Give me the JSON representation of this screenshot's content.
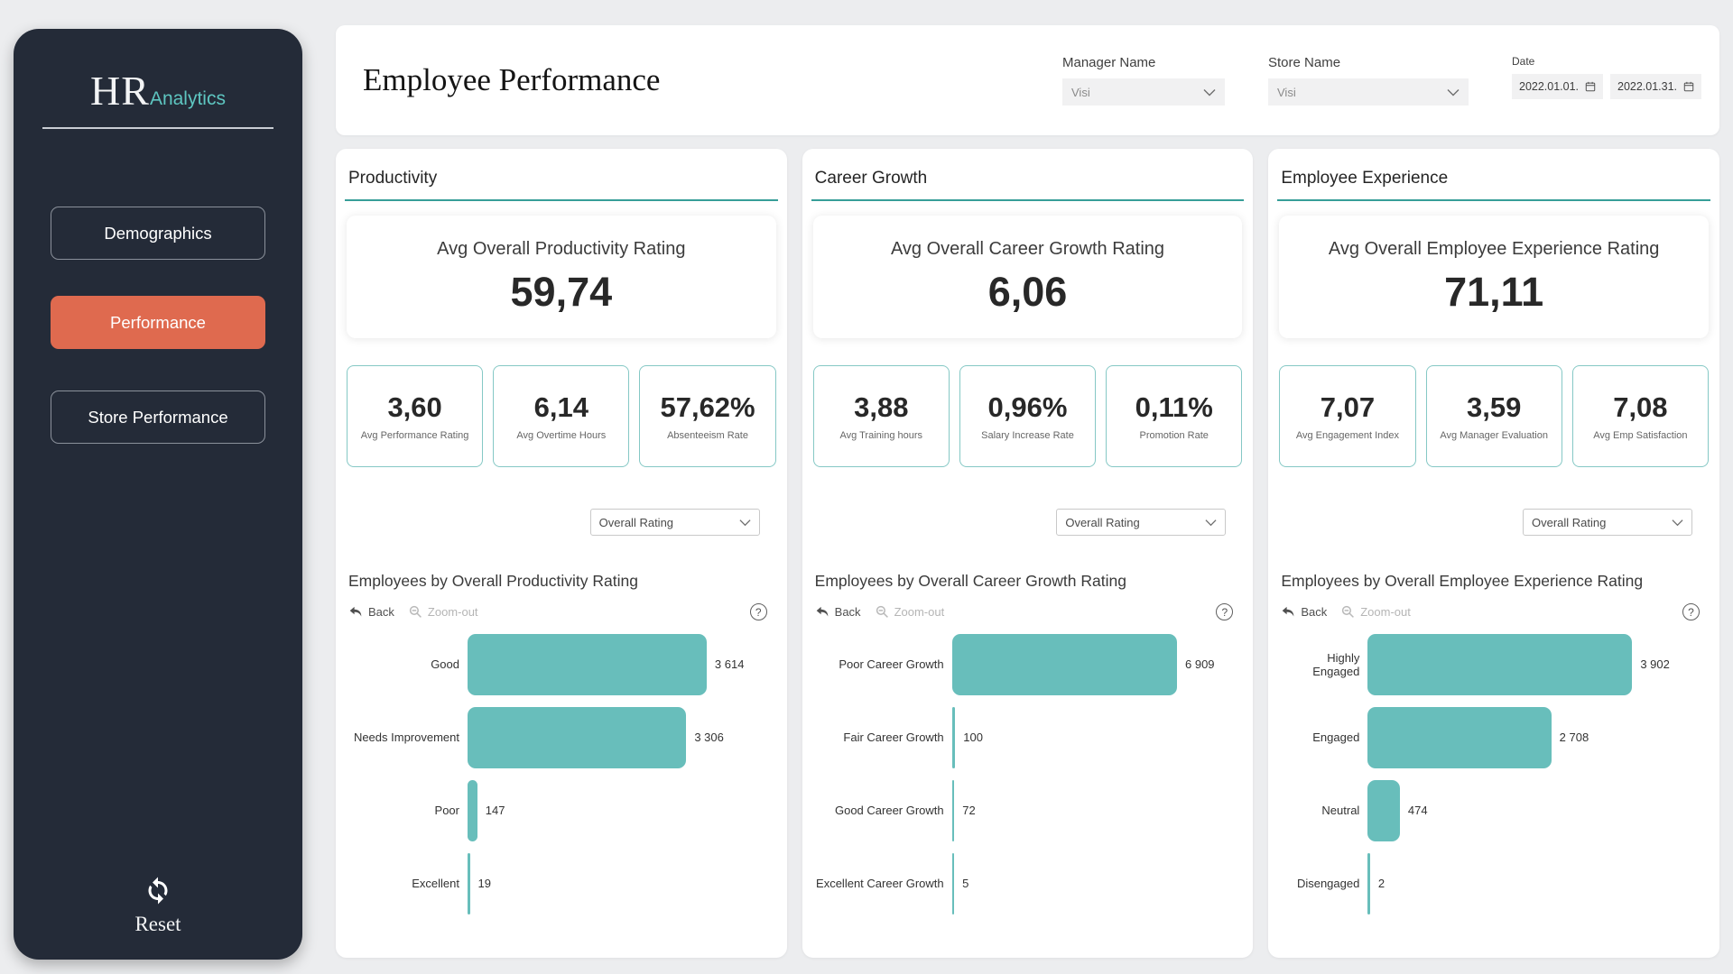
{
  "colors": {
    "accent_teal": "#68BEBB",
    "accent_teal_light": "#5EC6C1",
    "accent_orange": "#DF6A4F",
    "underline_teal": "#379E98",
    "sidebar_bg": "#242B38"
  },
  "sidebar": {
    "logo": {
      "primary": "HR",
      "secondary": "Analytics"
    },
    "nav": [
      {
        "label": "Demographics",
        "active": false
      },
      {
        "label": "Performance",
        "active": true
      },
      {
        "label": "Store Performance",
        "active": false
      }
    ],
    "reset_label": "Reset"
  },
  "header": {
    "title": "Employee Performance",
    "filters": {
      "manager": {
        "label": "Manager Name",
        "value": "Visi"
      },
      "store": {
        "label": "Store Name",
        "value": "Visi"
      },
      "date": {
        "label": "Date",
        "start": "2022.01.01.",
        "end": "2022.01.31."
      }
    }
  },
  "misc": {
    "help_glyph": "?"
  },
  "cards": [
    {
      "title": "Productivity",
      "kpi_label": "Avg Overall Productivity Rating",
      "kpi_value": "59,74",
      "metrics": [
        {
          "value": "3,60",
          "label": "Avg Performance Rating"
        },
        {
          "value": "6,14",
          "label": "Avg Overtime Hours"
        },
        {
          "value": "57,62%",
          "label": "Absenteeism Rate"
        }
      ],
      "breakdown_selector": "Overall Rating"
    },
    {
      "title": "Career Growth",
      "kpi_label": "Avg Overall Career Growth Rating",
      "kpi_value": "6,06",
      "metrics": [
        {
          "value": "3,88",
          "label": "Avg Training hours"
        },
        {
          "value": "0,96%",
          "label": "Salary Increase Rate"
        },
        {
          "value": "0,11%",
          "label": "Promotion Rate"
        }
      ],
      "breakdown_selector": "Overall Rating"
    },
    {
      "title": "Employee Experience",
      "kpi_label": "Avg Overall Employee Experience Rating",
      "kpi_value": "71,11",
      "metrics": [
        {
          "value": "7,07",
          "label": "Avg Engagement Index"
        },
        {
          "value": "3,59",
          "label": "Avg Manager Evaluation"
        },
        {
          "value": "7,08",
          "label": "Avg Emp Satisfaction"
        }
      ],
      "breakdown_selector": "Overall Rating"
    }
  ],
  "chart_data": [
    {
      "type": "bar",
      "orientation": "horizontal",
      "title": "Employees by Overall Productivity Rating",
      "toolbar": {
        "back": "Back",
        "zoom_out": "Zoom-out"
      },
      "categories": [
        "Good",
        "Needs Improvement",
        "Poor",
        "Excellent"
      ],
      "values": [
        3614,
        3306,
        147,
        19
      ],
      "value_labels": [
        "3 614",
        "3 306",
        "147",
        "19"
      ]
    },
    {
      "type": "bar",
      "orientation": "horizontal",
      "title": "Employees by Overall Career Growth Rating",
      "toolbar": {
        "back": "Back",
        "zoom_out": "Zoom-out"
      },
      "categories": [
        "Poor Career Growth",
        "Fair Career Growth",
        "Good Career Growth",
        "Excellent Career Growth"
      ],
      "values": [
        6909,
        100,
        72,
        5
      ],
      "value_labels": [
        "6 909",
        "100",
        "72",
        "5"
      ]
    },
    {
      "type": "bar",
      "orientation": "horizontal",
      "title": "Employees by Overall Employee Experience Rating",
      "toolbar": {
        "back": "Back",
        "zoom_out": "Zoom-out"
      },
      "categories": [
        "Highly Engaged",
        "Engaged",
        "Neutral",
        "Disengaged"
      ],
      "values": [
        3902,
        2708,
        474,
        2
      ],
      "value_labels": [
        "3 902",
        "2 708",
        "474",
        "2"
      ]
    }
  ]
}
